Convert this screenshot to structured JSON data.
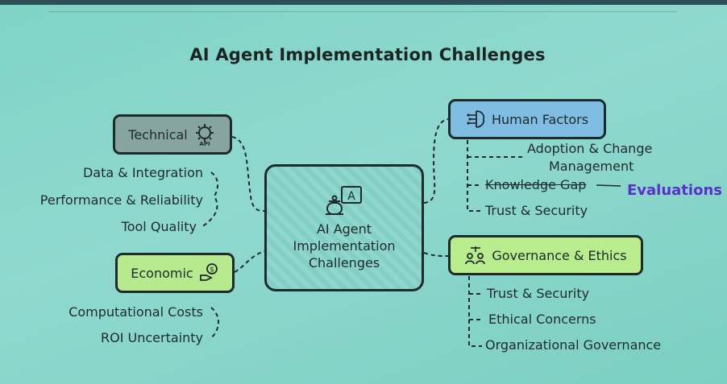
{
  "title": "AI Agent Implementation Challenges",
  "center": {
    "line1": "AI Agent",
    "line2": "Implementation",
    "line3": "Challenges"
  },
  "technical": {
    "label": "Technical",
    "items": [
      "Data & Integration",
      "Performance & Reliability",
      "Tool Quality"
    ]
  },
  "economic": {
    "label": "Economic",
    "items": [
      "Computational Costs",
      "ROI Uncertainty"
    ]
  },
  "human_factors": {
    "label": "Human Factors",
    "items": [
      "Adoption & Change",
      "Management",
      "Knowledge Gap",
      "Trust & Security"
    ],
    "annotation": "Evaluations"
  },
  "governance": {
    "label": "Governance & Ethics",
    "items": [
      "Trust & Security",
      "Ethical Concerns",
      "Organizational Governance"
    ]
  },
  "colors": {
    "technical": "#86a5a0",
    "economic": "#b7e98f",
    "human": "#7fbde2",
    "governance": "#b8ec8c",
    "annotation": "#5b2fc9"
  }
}
